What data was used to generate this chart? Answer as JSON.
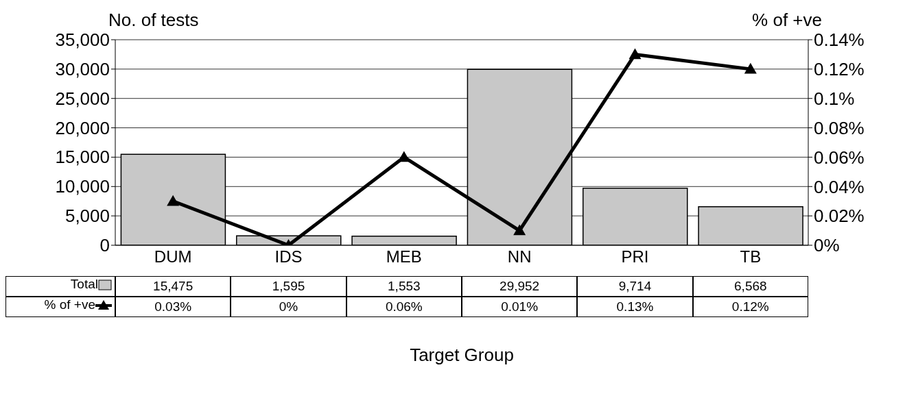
{
  "chart_data": {
    "type": "bar",
    "xlabel": "Target Group",
    "ylabel": "No. of tests",
    "y2label": "% of +ve",
    "categories": [
      "DUM",
      "IDS",
      "MEB",
      "NN",
      "PRI",
      "TB"
    ],
    "series": [
      {
        "name": "Total",
        "color": "#c8c8c8",
        "values": [
          15475,
          1595,
          1553,
          29952,
          9714,
          6568
        ],
        "value_labels": [
          "15,475",
          "1,595",
          "1,553",
          "29,952",
          "9,714",
          "6,568"
        ]
      },
      {
        "name": "% of +ve",
        "type": "line",
        "axis": "y2",
        "color": "#000000",
        "values": [
          0.03,
          0,
          0.06,
          0.01,
          0.13,
          0.12
        ],
        "value_labels": [
          "0.03%",
          "0%",
          "0.06%",
          "0.01%",
          "0.13%",
          "0.12%"
        ]
      }
    ],
    "ylim": [
      0,
      35000
    ],
    "yticks": [
      0,
      {
        "value": 5000,
        "label": "5,000"
      },
      {
        "value": 10000,
        "label": "10,000"
      },
      {
        "value": 15000,
        "label": "15,000"
      },
      {
        "value": 20000,
        "label": "20,000"
      },
      {
        "value": 25000,
        "label": "25,000"
      },
      {
        "value": 30000,
        "label": "30,000"
      },
      {
        "value": 35000,
        "label": "35,000"
      }
    ],
    "y2lim": [
      0,
      0.14
    ],
    "y2ticks": [
      {
        "value": 0,
        "label": "0%"
      },
      {
        "value": 0.02,
        "label": "0.02%"
      },
      {
        "value": 0.04,
        "label": "0.04%"
      },
      {
        "value": 0.06,
        "label": "0.06%"
      },
      {
        "value": 0.08,
        "label": "0.08%"
      },
      {
        "value": 0.1,
        "label": "0.1%"
      },
      {
        "value": 0.12,
        "label": "0.12%"
      },
      {
        "value": 0.14,
        "label": "0.14%"
      }
    ],
    "grid": "y",
    "legend": "bottom",
    "marker": "triangle",
    "line_style": "solid"
  }
}
